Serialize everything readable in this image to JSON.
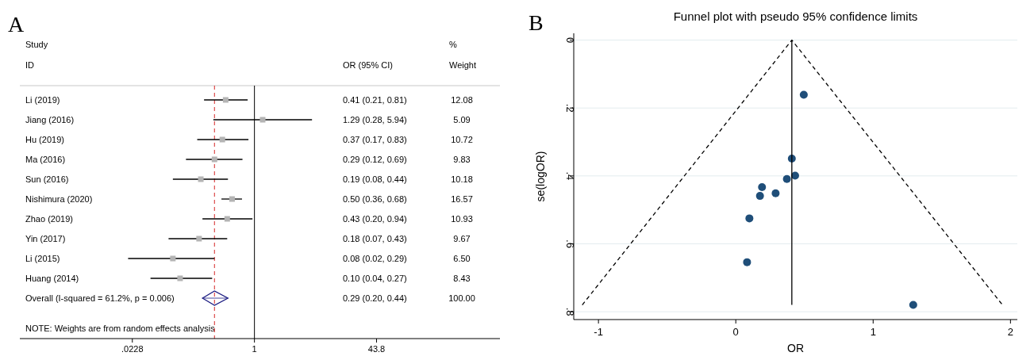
{
  "chart_data": [
    {
      "type": "scatter",
      "orientation": "horizontal",
      "log": "x",
      "categories": [
        "Li (2019)",
        "Jiang (2016)",
        "Hu (2019)",
        "Ma (2016)",
        "Sun (2016)",
        "Nishimura (2020)",
        "Zhao (2019)",
        "Yin (2017)",
        "Li (2015)",
        "Huang (2014)",
        "Overall  (I-squared = 61.2%, p = 0.006)"
      ],
      "series": [
        {
          "marker": "square",
          "color": "#b4b4b4",
          "values": [
            0.41,
            1.29,
            0.37,
            0.29,
            0.19,
            0.5,
            0.43,
            0.18,
            0.08,
            0.1,
            null
          ],
          "errors": [
            [
              0.21,
              0.81
            ],
            [
              0.28,
              5.94
            ],
            [
              0.17,
              0.83
            ],
            [
              0.12,
              0.69
            ],
            [
              0.08,
              0.44
            ],
            [
              0.36,
              0.68
            ],
            [
              0.2,
              0.94
            ],
            [
              0.07,
              0.43
            ],
            [
              0.02,
              0.29
            ],
            [
              0.04,
              0.27
            ],
            null
          ]
        },
        {
          "marker": "diamond",
          "color": "#1a1a80",
          "values": [
            null,
            null,
            null,
            null,
            null,
            null,
            null,
            null,
            null,
            null,
            0.29
          ],
          "errors": [
            null,
            null,
            null,
            null,
            null,
            null,
            null,
            null,
            null,
            null,
            [
              0.2,
              0.44
            ]
          ]
        }
      ],
      "xlim": [
        0.0007,
        2000
      ],
      "xticks": [
        {
          "value": 0.0228,
          "label": ".0228"
        },
        1,
        43.8
      ],
      "ref_lines": [
        {
          "axis": "x",
          "value": 1,
          "color": "#000000",
          "line_style": "solid"
        },
        {
          "axis": "x",
          "value": 0.29,
          "color": "#d62728",
          "line_style": "dashed"
        }
      ],
      "annotations": [
        "A",
        "Study",
        "ID",
        "OR (95% CI)",
        "%",
        "Weight",
        "NOTE: Weights are from random effects analysis",
        "0.41 (0.21, 0.81)",
        "1.29 (0.28, 5.94)",
        "0.37 (0.17, 0.83)",
        "0.29 (0.12, 0.69)",
        "0.19 (0.08, 0.44)",
        "0.50 (0.36, 0.68)",
        "0.43 (0.20, 0.94)",
        "0.18 (0.07, 0.43)",
        "0.08 (0.02, 0.29)",
        "0.10 (0.04, 0.27)",
        "0.29 (0.20, 0.44)",
        "12.08",
        "5.09",
        "10.72",
        "9.83",
        "10.18",
        "16.57",
        "10.93",
        "9.67",
        "6.50",
        "8.43",
        "100.00"
      ]
    },
    {
      "type": "scatter",
      "title": "Funnel plot with pseudo 95% confidence limits",
      "xlabel": "OR",
      "ylabel": "se(logOR)",
      "xlim": [
        -1.18,
        2.05
      ],
      "xticks": [
        -1,
        0,
        1,
        2
      ],
      "ylim": [
        0.823,
        -0.02
      ],
      "yticks": [
        {
          "value": 0,
          "label": "0"
        },
        {
          "value": 0.2,
          "label": ".2"
        },
        {
          "value": 0.4,
          "label": ".4"
        },
        {
          "value": 0.6,
          "label": ".6"
        },
        {
          "value": 0.8,
          "label": ".8"
        }
      ],
      "grid": "y",
      "series": [
        {
          "marker": "circle",
          "color": "#1f4e79",
          "x": [
            0.495,
            0.408,
            0.432,
            0.372,
            0.191,
            0.29,
            0.176,
            0.099,
            0.082,
            1.292
          ],
          "values": [
            0.161,
            0.349,
            0.399,
            0.409,
            0.433,
            0.451,
            0.459,
            0.525,
            0.654,
            0.78
          ]
        },
        {
          "type": "line",
          "marker": "none",
          "line_style": "dashed",
          "color": "#000000",
          "x": [
            -1.118,
            0.408,
            1.942
          ],
          "values": [
            0.78,
            0,
            0.78
          ]
        },
        {
          "type": "line",
          "marker": "none",
          "line_style": "solid",
          "color": "#000000",
          "x": [
            0.408,
            0.408
          ],
          "values": [
            0,
            0.78
          ]
        }
      ],
      "annotations": [
        "B"
      ]
    }
  ]
}
